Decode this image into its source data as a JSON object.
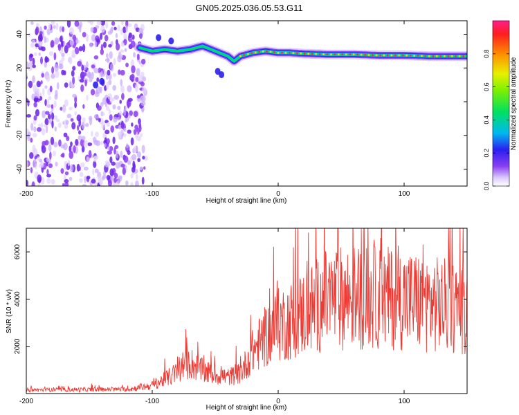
{
  "title": "GN05.2025.036.05.53.G11",
  "colors": {
    "snr_line": "#ee3a33",
    "trace_core": "#e83a3a",
    "noise_purple": "#7a2be0",
    "noise_light": "#d2b6ff"
  },
  "chart_data": [
    {
      "type": "heatmap",
      "xlabel": "Height of straight line (km)",
      "ylabel": "Frequency (Hz)",
      "xlim": [
        -200,
        150
      ],
      "ylim": [
        -50,
        48
      ],
      "xticks": [
        -200,
        -100,
        0,
        100
      ],
      "yticks": [
        -40,
        -20,
        0,
        20,
        40
      ],
      "colorbar": {
        "label": "Normalized spectral amplitude",
        "range": [
          0,
          1
        ],
        "ticks": [
          0.0,
          0.2,
          0.4,
          0.6,
          0.8
        ]
      },
      "dominant_frequency": {
        "x": [
          -110,
          -100,
          -90,
          -80,
          -70,
          -60,
          -50,
          -40,
          -35,
          -30,
          -20,
          -10,
          0,
          10,
          20,
          40,
          60,
          80,
          100,
          120,
          150
        ],
        "y": [
          32,
          30,
          31,
          30,
          31,
          33,
          30,
          27,
          24,
          27,
          29,
          30,
          29,
          29,
          28.5,
          28,
          28,
          27.5,
          27.5,
          27,
          27
        ]
      }
    },
    {
      "type": "line",
      "xlabel": "Height of straight line (km)",
      "ylabel": "SNR (10 * v/v)",
      "xlim": [
        -200,
        150
      ],
      "ylim": [
        0,
        7000
      ],
      "xticks": [
        -200,
        -100,
        0,
        100
      ],
      "yticks": [
        2000,
        4000,
        6000
      ],
      "snr_envelope": {
        "x": [
          -200,
          -120,
          -110,
          -100,
          -90,
          -80,
          -70,
          -60,
          -50,
          -40,
          -30,
          -20,
          -10,
          0,
          10,
          20,
          30,
          40,
          60,
          80,
          100,
          120,
          150
        ],
        "y": [
          150,
          180,
          250,
          350,
          600,
          900,
          1300,
          950,
          800,
          700,
          850,
          1800,
          2400,
          2900,
          3100,
          3400,
          3700,
          4000,
          4100,
          4050,
          4000,
          3800,
          3600
        ]
      }
    }
  ]
}
